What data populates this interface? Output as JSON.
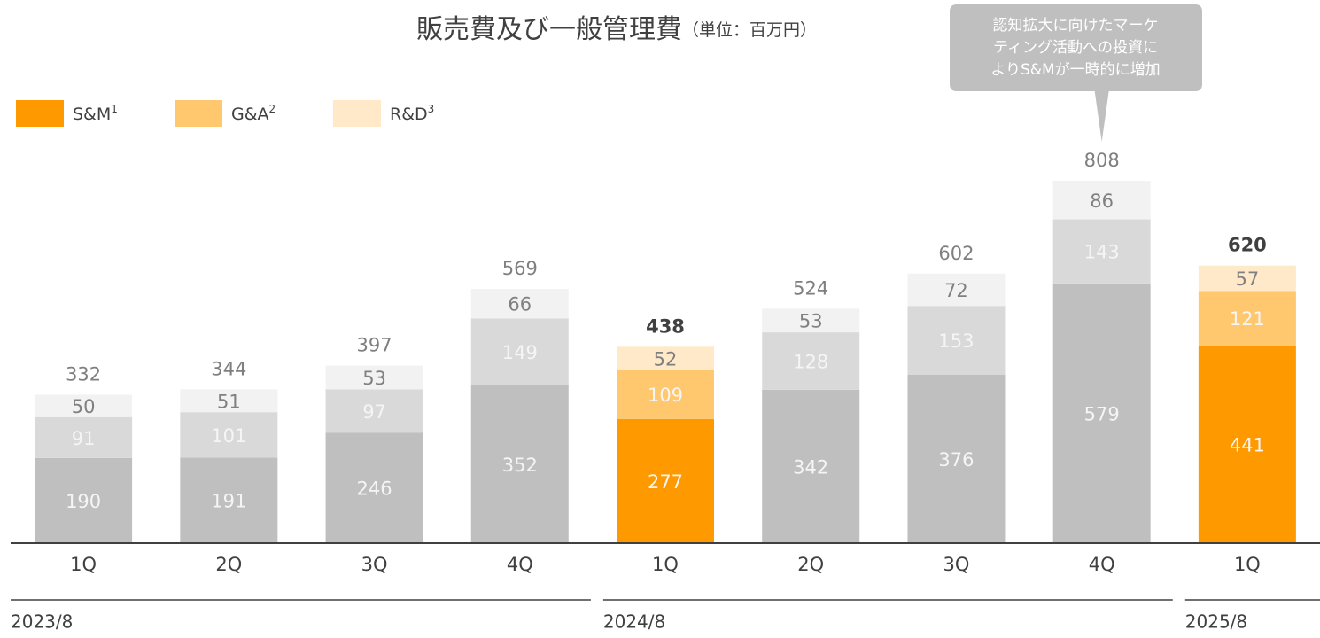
{
  "chart_data": {
    "type": "stacked_bar",
    "title": "販売費及び一般管理費",
    "subtitle": "（単位：百万円）",
    "categories": [
      "1Q",
      "2Q",
      "3Q",
      "4Q",
      "1Q",
      "2Q",
      "3Q",
      "4Q",
      "1Q"
    ],
    "groups": [
      {
        "label": "2023/8",
        "start": 0,
        "end": 3
      },
      {
        "label": "2024/8",
        "start": 4,
        "end": 7
      },
      {
        "label": "2025/8",
        "start": 8,
        "end": 8
      }
    ],
    "highlight": [
      false,
      false,
      false,
      false,
      true,
      false,
      false,
      false,
      true
    ],
    "series": [
      {
        "name": "S&M",
        "note": "1",
        "color": "#ff9900",
        "muted_color": "#bfbfbf",
        "values": [
          190,
          191,
          246,
          352,
          277,
          342,
          376,
          579,
          441
        ]
      },
      {
        "name": "G&A",
        "note": "2",
        "color": "#ffc76e",
        "muted_color": "#d9d9d9",
        "values": [
          91,
          101,
          97,
          149,
          109,
          128,
          153,
          143,
          121
        ]
      },
      {
        "name": "R&D",
        "note": "3",
        "color": "#ffe9c9",
        "muted_color": "#f2f2f2",
        "values": [
          50,
          51,
          53,
          66,
          52,
          53,
          72,
          86,
          57
        ]
      }
    ],
    "totals": [
      332,
      344,
      397,
      569,
      438,
      524,
      602,
      808,
      620
    ],
    "annotation": {
      "lines": [
        "認知拡大に向けたマーケ",
        "ティング活動への投資に",
        "よりS&Mが一時的に増加"
      ],
      "category": 7
    },
    "ylim": [
      0,
      808
    ]
  }
}
